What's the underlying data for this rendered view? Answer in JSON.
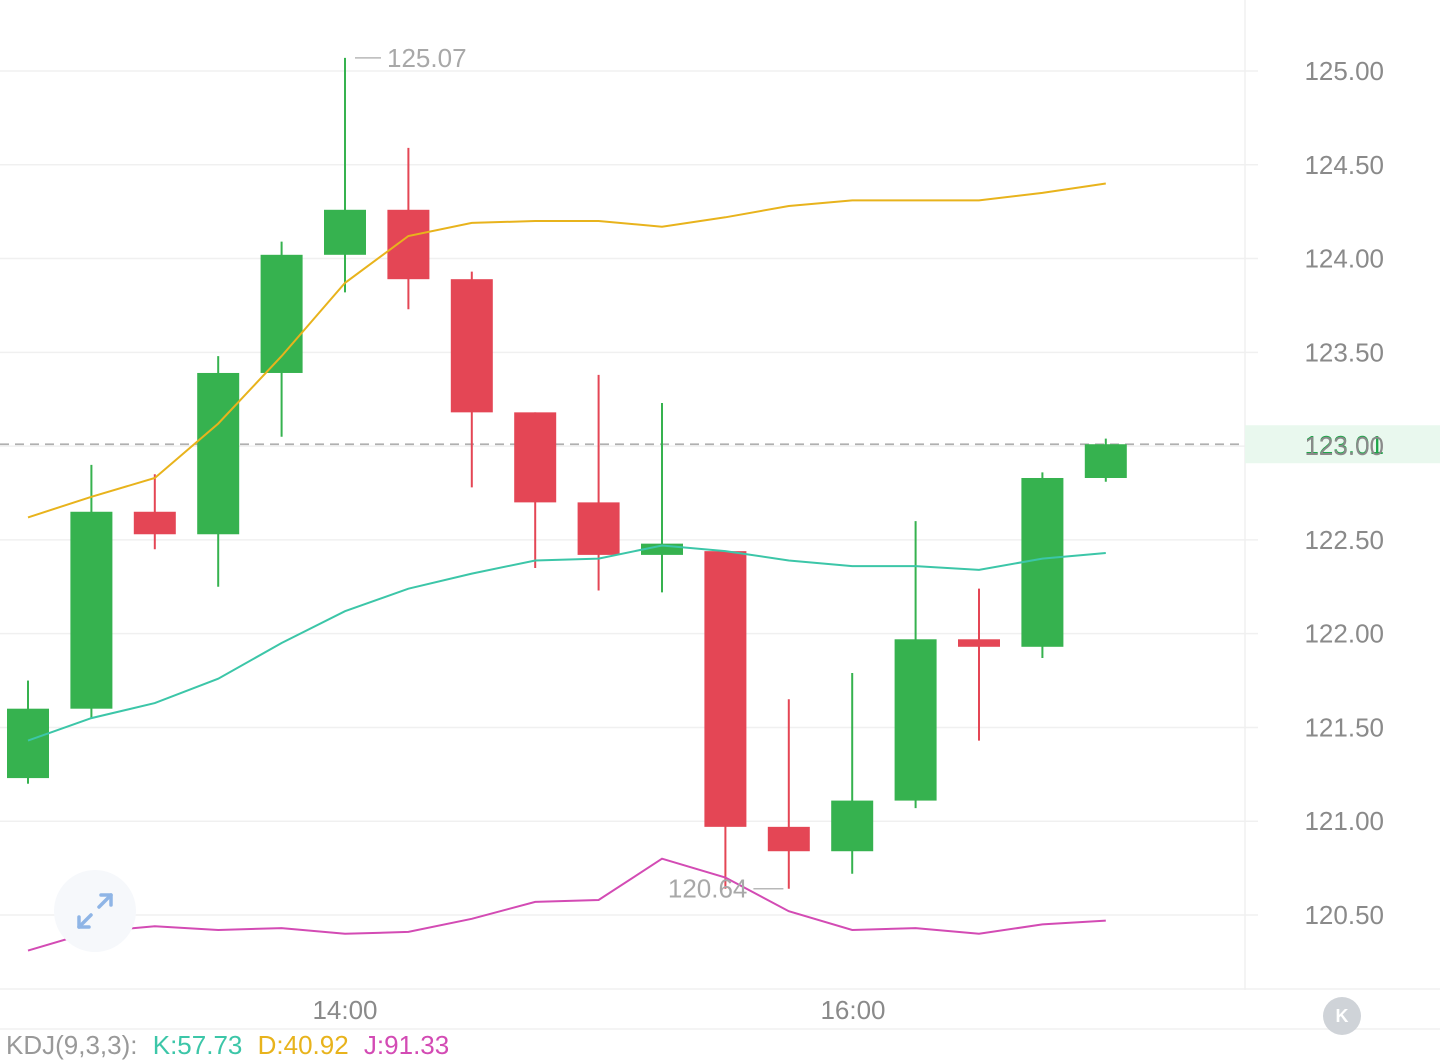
{
  "chart_data": {
    "type": "candlestick",
    "price_axis": {
      "ylim": [
        120.25,
        125.3
      ],
      "ticks": [
        "125.00",
        "124.50",
        "124.00",
        "123.50",
        "123.00",
        "122.50",
        "122.00",
        "121.50",
        "121.00",
        "120.50"
      ],
      "position": "right"
    },
    "time_labels": [
      "14:00",
      "16:00"
    ],
    "current_price": {
      "value": 123.01,
      "label": "123.01",
      "color": "#1fa64a"
    },
    "high_marker": {
      "value": 125.07,
      "label": "125.07",
      "candle_index": 5
    },
    "low_marker": {
      "value": 120.64,
      "label": "120.64",
      "candle_index": 11
    },
    "colors": {
      "up": "#36b24f",
      "down": "#e44655",
      "ma_yellow": "#e8b31c",
      "ma_teal": "#3cc6a8",
      "kdj_magenta": "#d34bb4",
      "grid": "#f0f0f0"
    },
    "candles": [
      {
        "o": 121.23,
        "h": 121.75,
        "l": 121.2,
        "c": 121.6
      },
      {
        "o": 121.6,
        "h": 122.9,
        "l": 121.55,
        "c": 122.65
      },
      {
        "o": 122.65,
        "h": 122.85,
        "l": 122.45,
        "c": 122.53
      },
      {
        "o": 122.53,
        "h": 123.48,
        "l": 122.25,
        "c": 123.39
      },
      {
        "o": 123.39,
        "h": 124.09,
        "l": 123.05,
        "c": 124.02
      },
      {
        "o": 124.02,
        "h": 125.07,
        "l": 123.82,
        "c": 124.26
      },
      {
        "o": 124.26,
        "h": 124.59,
        "l": 123.73,
        "c": 123.89
      },
      {
        "o": 123.89,
        "h": 123.93,
        "l": 122.78,
        "c": 123.18
      },
      {
        "o": 123.18,
        "h": 123.18,
        "l": 122.35,
        "c": 122.7
      },
      {
        "o": 122.7,
        "h": 123.38,
        "l": 122.23,
        "c": 122.42
      },
      {
        "o": 122.42,
        "h": 123.23,
        "l": 122.22,
        "c": 122.48
      },
      {
        "o": 122.44,
        "h": 122.44,
        "l": 120.64,
        "c": 120.97
      },
      {
        "o": 120.97,
        "h": 121.65,
        "l": 120.64,
        "c": 120.84
      },
      {
        "o": 120.84,
        "h": 121.79,
        "l": 120.72,
        "c": 121.11
      },
      {
        "o": 121.11,
        "h": 122.6,
        "l": 121.07,
        "c": 121.97
      },
      {
        "o": 121.97,
        "h": 122.24,
        "l": 121.43,
        "c": 121.93
      },
      {
        "o": 121.93,
        "h": 122.86,
        "l": 121.87,
        "c": 122.83
      },
      {
        "o": 122.83,
        "h": 123.04,
        "l": 122.81,
        "c": 123.01
      }
    ],
    "ma_yellow": [
      122.62,
      122.73,
      122.83,
      123.12,
      123.48,
      123.87,
      124.12,
      124.19,
      124.2,
      124.2,
      124.17,
      124.22,
      124.28,
      124.31,
      124.31,
      124.31,
      124.35,
      124.4
    ],
    "ma_teal": [
      121.43,
      121.55,
      121.63,
      121.76,
      121.95,
      122.12,
      122.24,
      122.32,
      122.39,
      122.4,
      122.47,
      122.44,
      122.39,
      122.36,
      122.36,
      122.34,
      122.4,
      122.43
    ],
    "kdj_line": [
      120.31,
      120.41,
      120.44,
      120.42,
      120.43,
      120.4,
      120.41,
      120.48,
      120.57,
      120.58,
      120.8,
      120.7,
      120.52,
      120.42,
      120.43,
      120.4,
      120.45,
      120.47
    ]
  },
  "indicator_bar": {
    "name": "KDJ(9,3,3):",
    "k": "K:57.73",
    "d": "D:40.92",
    "j": "J:91.33",
    "k_color": "#3cc6a8",
    "d_color": "#e8b31c",
    "j_color": "#d34bb4"
  },
  "controls": {
    "expand_icon": "expand-arrows-icon",
    "k_button_label": "K"
  }
}
